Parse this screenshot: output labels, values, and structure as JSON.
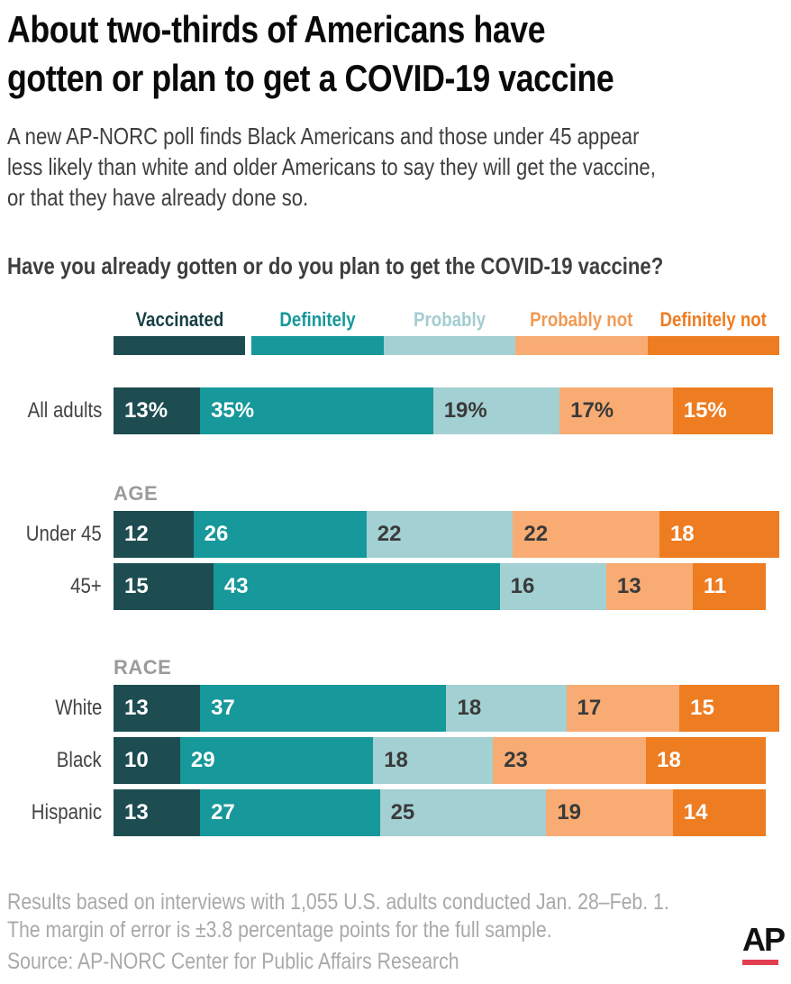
{
  "header": {
    "title_line1": "About two-thirds of Americans have",
    "title_line2": "gotten or plan to get a COVID-19 vaccine",
    "subtitle_line1": "A new AP-NORC poll finds Black Americans and those under 45 appear",
    "subtitle_line2": "less likely than white and older Americans to say they will get the vaccine,",
    "subtitle_line3": "or that they have already done so."
  },
  "chart_data": {
    "type": "bar",
    "orientation": "horizontal",
    "stacked": true,
    "unit": "%",
    "xlim": [
      0,
      100
    ],
    "grid": false,
    "legend_position": "top",
    "title": "Have you already gotten or do you plan to get the COVID-19 vaccine?",
    "legend": [
      {
        "label": "Vaccinated",
        "color": "#1d4d51",
        "label_color": "#173f44",
        "text_color": "#ffffff"
      },
      {
        "label": "Definitely",
        "color": "#17989a",
        "label_color": "#17989a",
        "text_color": "#ffffff"
      },
      {
        "label": "Probably",
        "color": "#a3d0d2",
        "label_color": "#a3cdd1",
        "text_color": "#3a3a3a"
      },
      {
        "label": "Probably not",
        "color": "#f8ab72",
        "label_color": "#f09a55",
        "text_color": "#3a3a3a"
      },
      {
        "label": "Definitely not",
        "color": "#ee7c21",
        "label_color": "#ee7c21",
        "text_color": "#ffffff"
      }
    ],
    "groups": [
      {
        "header": null,
        "rows": [
          {
            "label": "All adults",
            "values": [
              13,
              35,
              19,
              17,
              15
            ],
            "display": [
              "13%",
              "35%",
              "19%",
              "17%",
              "15%"
            ]
          }
        ]
      },
      {
        "header": "AGE",
        "rows": [
          {
            "label": "Under 45",
            "values": [
              12,
              26,
              22,
              22,
              18
            ]
          },
          {
            "label": "45+",
            "values": [
              15,
              43,
              16,
              13,
              11
            ]
          }
        ]
      },
      {
        "header": "RACE",
        "rows": [
          {
            "label": "White",
            "values": [
              13,
              37,
              18,
              17,
              15
            ]
          },
          {
            "label": "Black",
            "values": [
              10,
              29,
              18,
              23,
              18
            ]
          },
          {
            "label": "Hispanic",
            "values": [
              13,
              27,
              25,
              19,
              14
            ]
          }
        ]
      }
    ]
  },
  "footer": {
    "note_line1": "Results based on interviews with 1,055 U.S. adults conducted Jan. 28–Feb. 1.",
    "note_line2": "The margin of error is ±3.8 percentage points for the full sample.",
    "source": "Source: AP-NORC Center for Public Affairs Research",
    "logo_text": "AP",
    "logo_underline_color": "#e13d4f"
  }
}
